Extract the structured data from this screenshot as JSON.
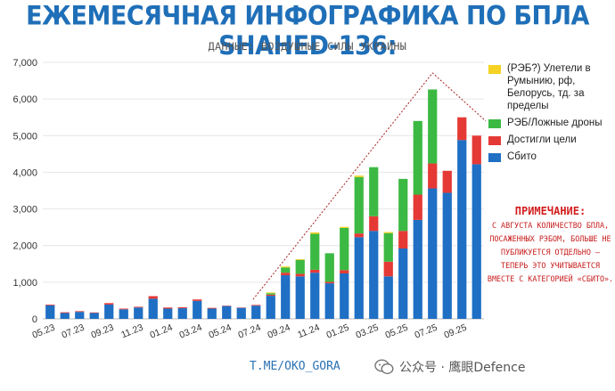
{
  "header": {
    "title": "ЕЖЕМЕСЯЧНАЯ ИНФОГРАФИКА ПО БПЛА SHAHED-136:",
    "subtitle": "ДАННЫЕ: ВОЗДУШНЫЕ СИЛЫ УКРАИНЫ"
  },
  "legend": [
    {
      "label": "(РЭБ?) Улетели в Румынию, рф, Белорусь, тд. за пределы",
      "color": "#f5d223"
    },
    {
      "label": "РЭБ/Ложные дроны",
      "color": "#3cb943"
    },
    {
      "label": "Достигли цели",
      "color": "#e53935"
    },
    {
      "label": "Сбито",
      "color": "#1f6fc4"
    }
  ],
  "note": {
    "title": "ПРИМЕЧАНИЕ:",
    "text": "С АВГУСТА КОЛИЧЕСТВО БПЛА, ПОСАЖЕННЫХ РЭБОМ, БОЛЬШЕ НЕ ПУБЛИКУЕТСЯ ОТДЕЛЬНО – ТЕПЕРЬ ЭТО УЧИТЫВАЕТСЯ ВМЕСТЕ С КАТЕГОРИЕЙ «СБИТО»."
  },
  "footer": {
    "source": "T.ME/OKO_GORA",
    "watermark": "公众号 · 鹰眼Defence",
    "watermark_icon": "wechat-icon"
  },
  "chart_data": {
    "type": "bar",
    "stacked": true,
    "categories": [
      "05.23",
      "06.23",
      "07.23",
      "08.23",
      "09.23",
      "10.23",
      "11.23",
      "12.23",
      "01.24",
      "02.24",
      "03.24",
      "04.24",
      "05.24",
      "06.24",
      "07.24",
      "08.24",
      "09.24",
      "10.24",
      "11.24",
      "12.24",
      "01.25",
      "02.25",
      "03.25",
      "04.25",
      "05.25",
      "06.25",
      "07.25",
      "08.25",
      "09.25",
      "10.25"
    ],
    "tick_labels": [
      "05.23",
      "07.23",
      "09.23",
      "11.23",
      "01.24",
      "03.24",
      "05.24",
      "07.24",
      "09.24",
      "11.24",
      "01.25",
      "03.25",
      "05.25",
      "07.25",
      "09.25"
    ],
    "series": [
      {
        "name": "Сбито",
        "color": "#1f6fc4",
        "values": [
          370,
          160,
          190,
          160,
          390,
          260,
          310,
          550,
          280,
          290,
          490,
          280,
          350,
          300,
          360,
          630,
          1190,
          1160,
          1260,
          970,
          1240,
          2230,
          2400,
          1160,
          1920,
          2700,
          3560,
          3440,
          4880,
          4220
        ]
      },
      {
        "name": "Достигли цели",
        "color": "#e53935",
        "values": [
          20,
          20,
          20,
          15,
          40,
          20,
          20,
          70,
          30,
          25,
          40,
          20,
          10,
          10,
          20,
          30,
          70,
          70,
          80,
          40,
          90,
          100,
          400,
          400,
          480,
          690,
          680,
          600,
          620,
          780
        ]
      },
      {
        "name": "РЭБ/Ложные дроны",
        "color": "#3cb943",
        "values": [
          0,
          0,
          0,
          0,
          0,
          0,
          0,
          0,
          0,
          0,
          0,
          0,
          0,
          0,
          0,
          40,
          140,
          380,
          980,
          780,
          1150,
          1540,
          1340,
          780,
          1420,
          2010,
          2020,
          0,
          0,
          0
        ]
      },
      {
        "name": "(РЭБ?) Улетели в Румынию, рф, Белорусь, тд. за пределы",
        "color": "#f5d223",
        "values": [
          0,
          0,
          0,
          0,
          0,
          0,
          0,
          0,
          0,
          0,
          0,
          0,
          0,
          0,
          0,
          20,
          30,
          20,
          40,
          0,
          30,
          40,
          0,
          30,
          0,
          0,
          0,
          0,
          0,
          0
        ]
      }
    ],
    "ylim": [
      0,
      7000
    ],
    "yticks": [
      "0",
      "1,000",
      "2,000",
      "3,000",
      "4,000",
      "5,000",
      "6,000",
      "7,000"
    ],
    "grid": true,
    "legend_position": "right",
    "trend_line": true
  }
}
